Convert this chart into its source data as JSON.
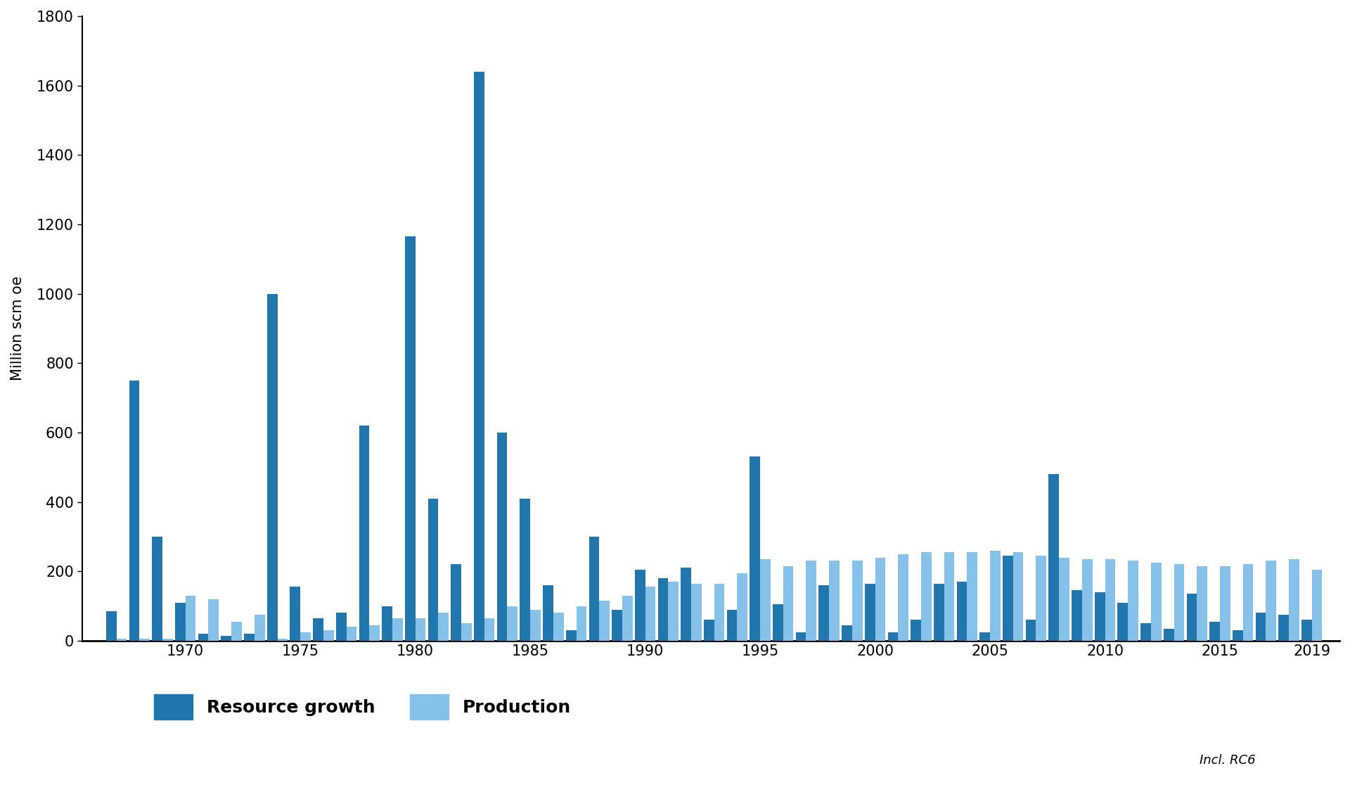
{
  "years": [
    1967,
    1968,
    1969,
    1970,
    1971,
    1972,
    1973,
    1974,
    1975,
    1976,
    1977,
    1978,
    1979,
    1980,
    1981,
    1982,
    1983,
    1984,
    1985,
    1986,
    1987,
    1988,
    1989,
    1990,
    1991,
    1992,
    1993,
    1994,
    1995,
    1996,
    1997,
    1998,
    1999,
    2000,
    2001,
    2002,
    2003,
    2004,
    2005,
    2006,
    2007,
    2008,
    2009,
    2010,
    2011,
    2012,
    2013,
    2014,
    2015,
    2016,
    2017,
    2018,
    2019
  ],
  "resource_growth": [
    85,
    750,
    300,
    110,
    20,
    15,
    20,
    1000,
    155,
    65,
    80,
    620,
    100,
    1165,
    410,
    220,
    1640,
    600,
    410,
    160,
    30,
    300,
    90,
    205,
    180,
    210,
    60,
    90,
    530,
    105,
    25,
    160,
    45,
    165,
    25,
    60,
    165,
    170,
    25,
    245,
    60,
    480,
    145,
    140,
    110,
    50,
    35,
    135,
    55,
    30,
    80,
    75,
    60
  ],
  "production": [
    5,
    5,
    5,
    130,
    120,
    55,
    75,
    5,
    25,
    30,
    40,
    45,
    65,
    65,
    80,
    50,
    65,
    100,
    90,
    80,
    100,
    115,
    130,
    155,
    170,
    165,
    165,
    195,
    235,
    215,
    230,
    230,
    230,
    240,
    250,
    255,
    255,
    255,
    260,
    255,
    245,
    240,
    235,
    235,
    230,
    225,
    220,
    215,
    215,
    220,
    230,
    235,
    205
  ],
  "resource_growth_color": "#2176ae",
  "production_color": "#85c1e9",
  "ylabel": "Million scm oe",
  "ylim": [
    0,
    1800
  ],
  "yticks": [
    0,
    200,
    400,
    600,
    800,
    1000,
    1200,
    1400,
    1600,
    1800
  ],
  "xticks": [
    1970,
    1975,
    1980,
    1985,
    1990,
    1995,
    2000,
    2005,
    2010,
    2015,
    2019
  ],
  "legend_resource_growth": "Resource growth",
  "legend_production": "Production",
  "footnote": "Incl. RC6",
  "bar_width": 0.45,
  "background_color": "#ffffff",
  "axis_fontsize": 15,
  "tick_fontsize": 15,
  "legend_fontsize": 18
}
